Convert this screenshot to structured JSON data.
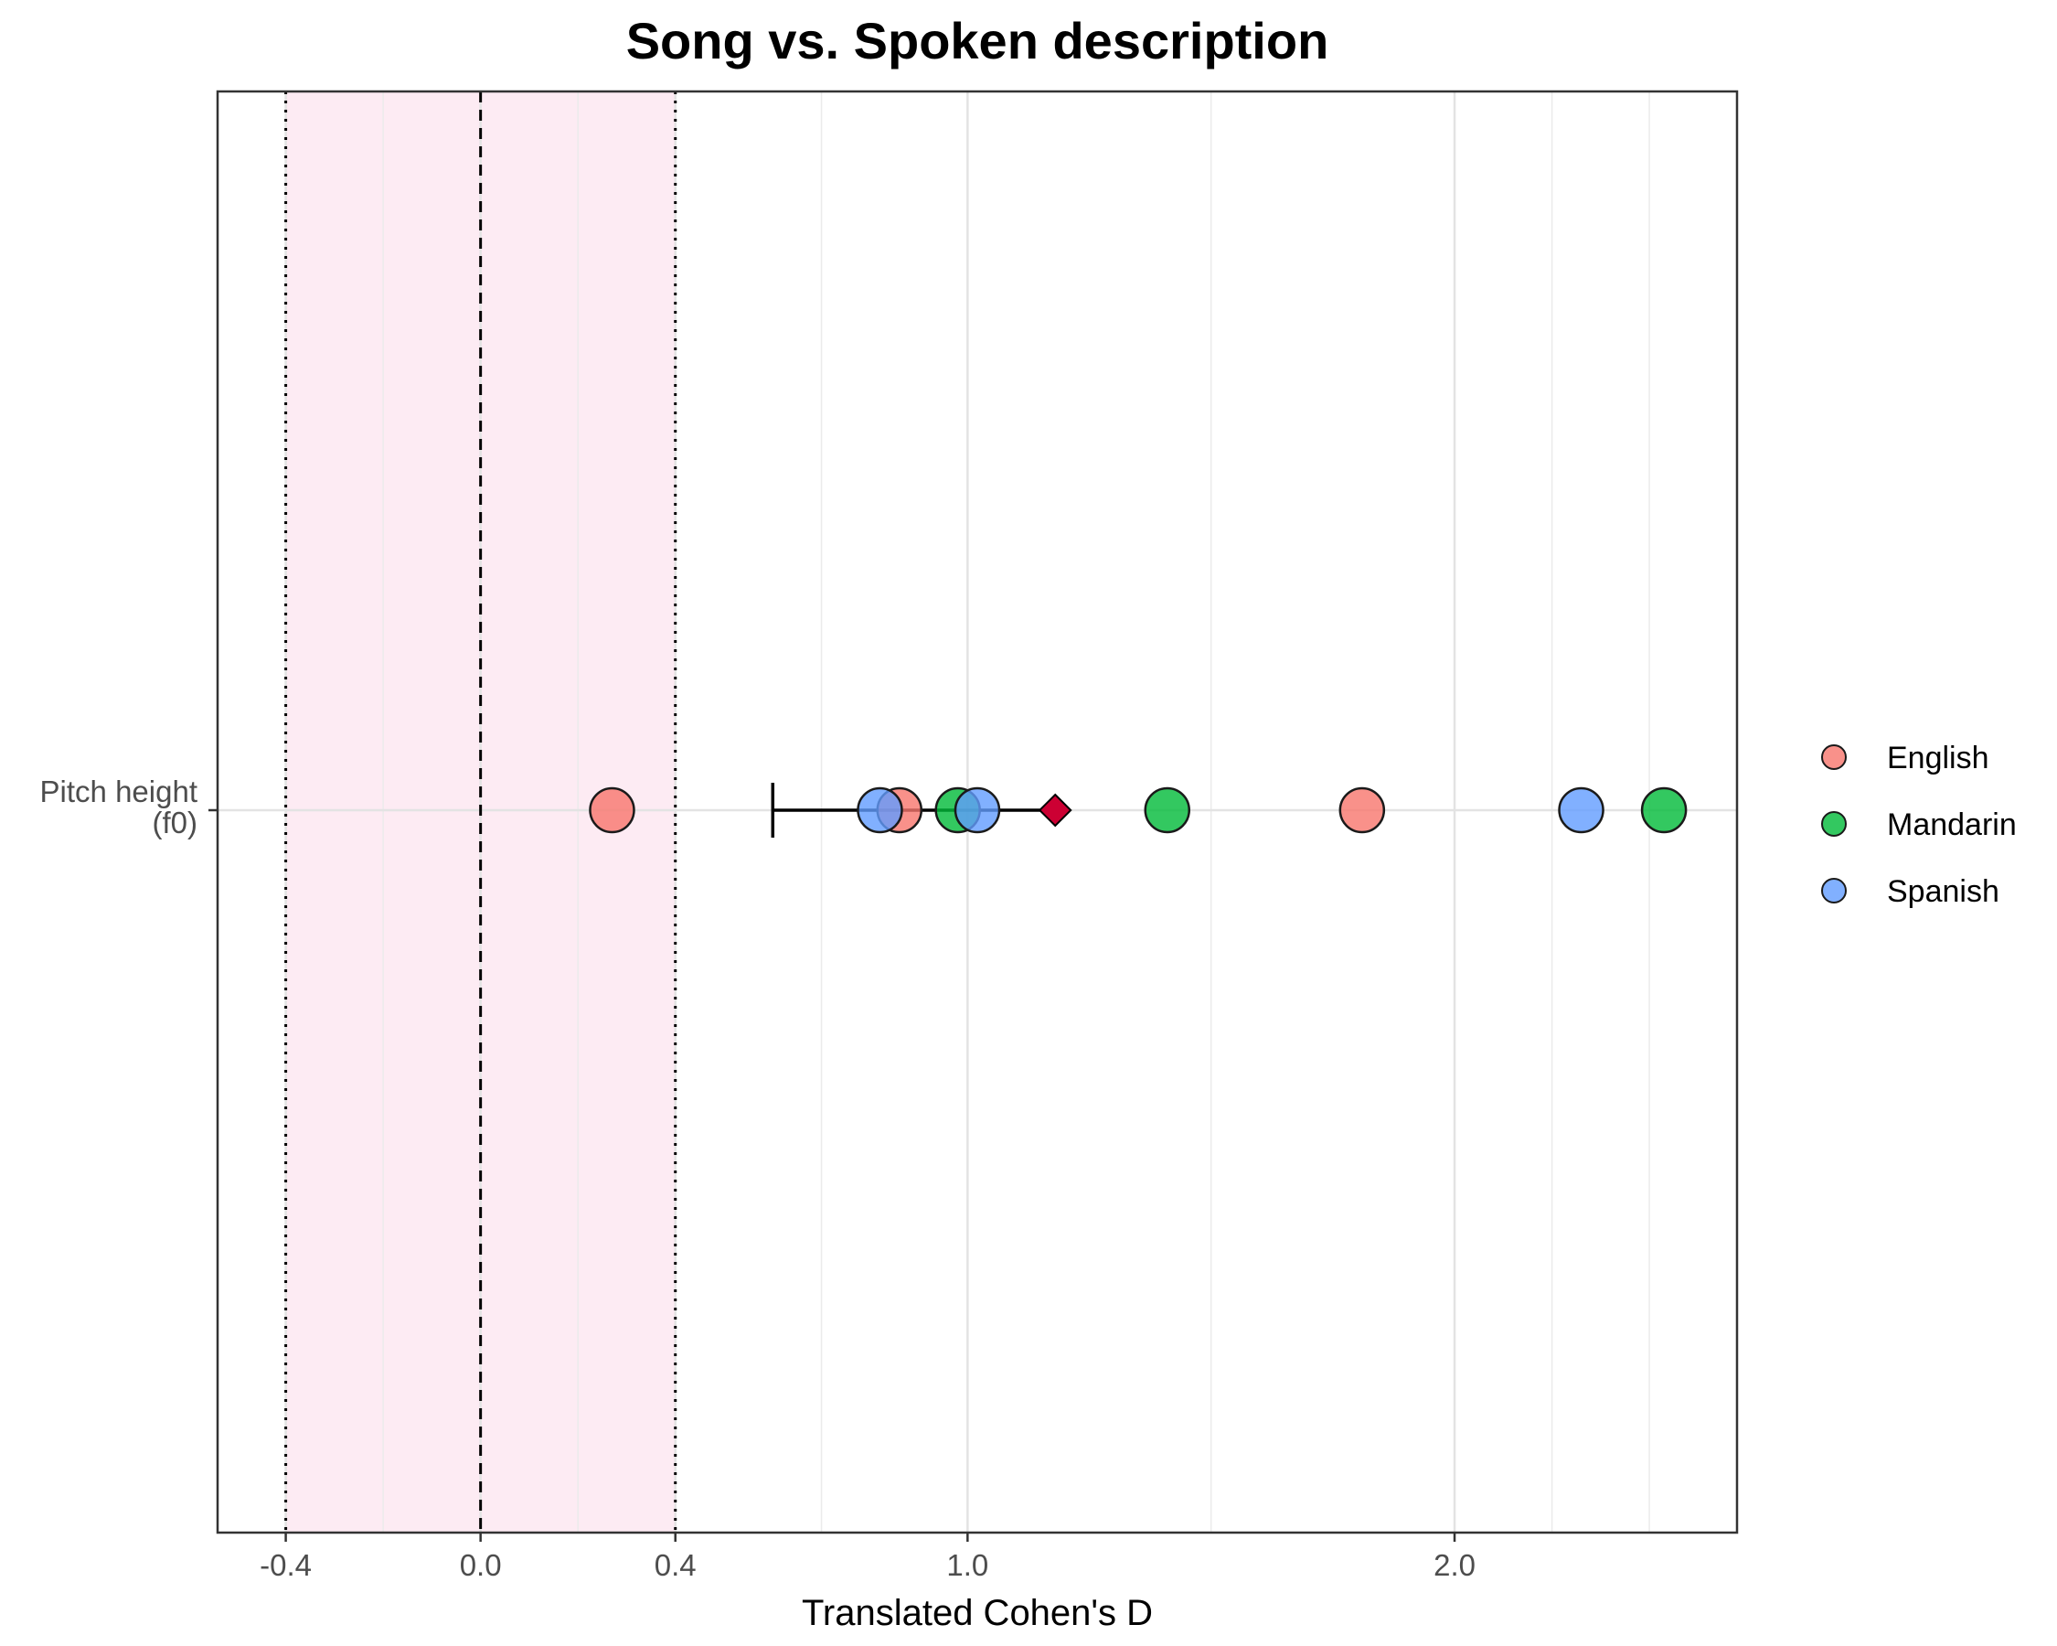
{
  "chart_data": {
    "type": "scatter",
    "title": "Song vs. Spoken description",
    "xlabel": "Translated Cohen's D",
    "ylabel": "",
    "x_ticks": [
      {
        "value": -0.4,
        "label": "-0.4"
      },
      {
        "value": 0.0,
        "label": "0.0"
      },
      {
        "value": 0.4,
        "label": "0.4"
      },
      {
        "value": 1.0,
        "label": "1.0"
      },
      {
        "value": 2.0,
        "label": "2.0"
      }
    ],
    "x_minor_gridlines": [
      -0.2,
      0.2,
      0.7,
      1.5,
      2.2,
      2.4
    ],
    "xlim": [
      -0.54,
      2.58
    ],
    "grid": true,
    "y_categories": [
      {
        "label_lines": [
          "Pitch height",
          "(f0)"
        ]
      }
    ],
    "shaded_region": {
      "from": -0.4,
      "to": 0.4,
      "color": "#fdebf3"
    },
    "reference_lines": [
      {
        "x": 0.0,
        "style": "dashed"
      },
      {
        "x": -0.4,
        "style": "dotted"
      },
      {
        "x": 0.4,
        "style": "dotted"
      }
    ],
    "series": [
      {
        "name": "English",
        "color": "#f8766d",
        "points": [
          0.27,
          0.86,
          1.81
        ]
      },
      {
        "name": "Mandarin",
        "color": "#00ba38",
        "points": [
          0.98,
          1.41,
          2.43
        ]
      },
      {
        "name": "Spanish",
        "color": "#619cff",
        "points": [
          0.82,
          1.02,
          2.26
        ]
      }
    ],
    "summary": {
      "estimate": 1.18,
      "ci_lower": 0.6,
      "color": "#cc0033",
      "marker": "diamond"
    },
    "legend_position": "right"
  }
}
